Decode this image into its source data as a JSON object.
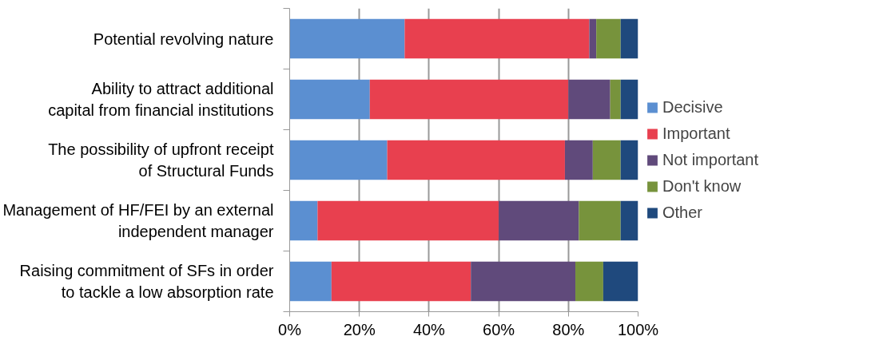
{
  "chart_data": {
    "type": "bar",
    "orientation": "horizontal",
    "stacked": true,
    "categories": [
      "Potential revolving nature",
      "Ability to attract additional capital from financial institutions",
      "The possibility of upfront receipt of Structural Funds",
      "Management of HF/FEI by an external independent manager",
      "Raising commitment of SFs in order to tackle a low absorption rate"
    ],
    "series": [
      {
        "name": "Decisive",
        "color": "#5b8fd1",
        "values": [
          33,
          23,
          28,
          8,
          12
        ]
      },
      {
        "name": "Important",
        "color": "#e8404f",
        "values": [
          53,
          57,
          51,
          52,
          40
        ]
      },
      {
        "name": "Not important",
        "color": "#604a7b",
        "values": [
          2,
          12,
          8,
          23,
          30
        ]
      },
      {
        "name": "Don't know",
        "color": "#77933c",
        "values": [
          7,
          3,
          8,
          12,
          8
        ]
      },
      {
        "name": "Other",
        "color": "#1f497d",
        "values": [
          5,
          5,
          5,
          5,
          10
        ]
      }
    ],
    "xlim": [
      0,
      100
    ],
    "xticks": [
      {
        "value": 0,
        "label": "0%"
      },
      {
        "value": 20,
        "label": "20%"
      },
      {
        "value": 40,
        "label": "40%"
      },
      {
        "value": 60,
        "label": "60%"
      },
      {
        "value": 80,
        "label": "80%"
      },
      {
        "value": 100,
        "label": "100%"
      }
    ],
    "grid": "x",
    "legend": "right"
  }
}
